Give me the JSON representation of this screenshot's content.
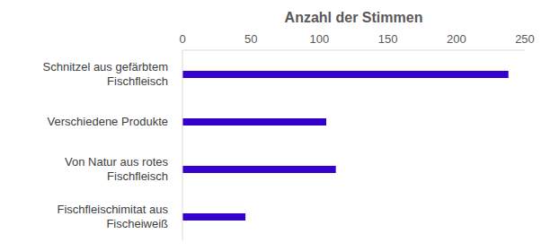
{
  "chart_data": {
    "type": "bar",
    "orientation": "horizontal",
    "xlabel": "Anzahl der Stimmen",
    "categories": [
      "Schnitzel aus gefärbtem Fischfleisch",
      "Verschiedene Produkte",
      "Von Natur aus rotes Fischfleisch",
      "Fischfleischimitat aus Fischeiweiß"
    ],
    "values": [
      238,
      105,
      112,
      46
    ],
    "color": "#3300cc",
    "xlim": [
      0,
      250
    ],
    "xticks": [
      0,
      50,
      100,
      150,
      200,
      250
    ],
    "grid": false
  }
}
